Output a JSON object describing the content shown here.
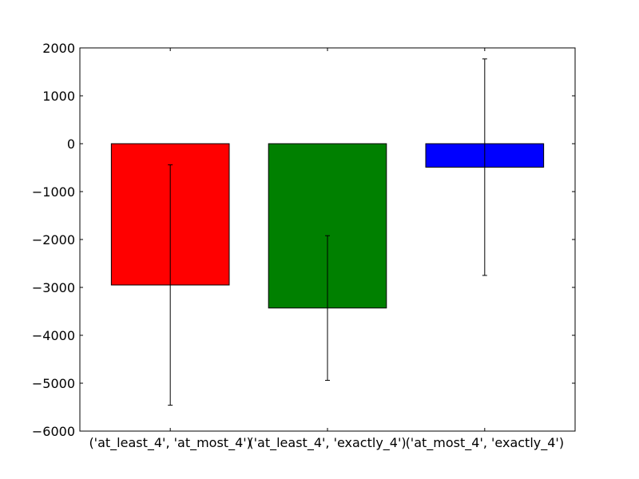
{
  "chart_data": {
    "type": "bar",
    "title": "",
    "xlabel": "",
    "ylabel": "",
    "ylim": [
      -6000,
      2000
    ],
    "yticks": [
      2000,
      1000,
      0,
      -1000,
      -2000,
      -3000,
      -4000,
      -5000,
      -6000
    ],
    "ytick_labels": [
      "2000",
      "1000",
      "0",
      "−1000",
      "−2000",
      "−3000",
      "−4000",
      "−5000",
      "−6000"
    ],
    "grid": false,
    "categories": [
      "('at_least_4', 'at_most_4')",
      "('at_least_4', 'exactly_4')",
      "('at_most_4', 'exactly_4')"
    ],
    "values": [
      -2950,
      -3430,
      -490
    ],
    "error": [
      2510,
      1510,
      2260
    ],
    "colors": [
      "#ff0000",
      "#008000",
      "#0000ff"
    ]
  }
}
